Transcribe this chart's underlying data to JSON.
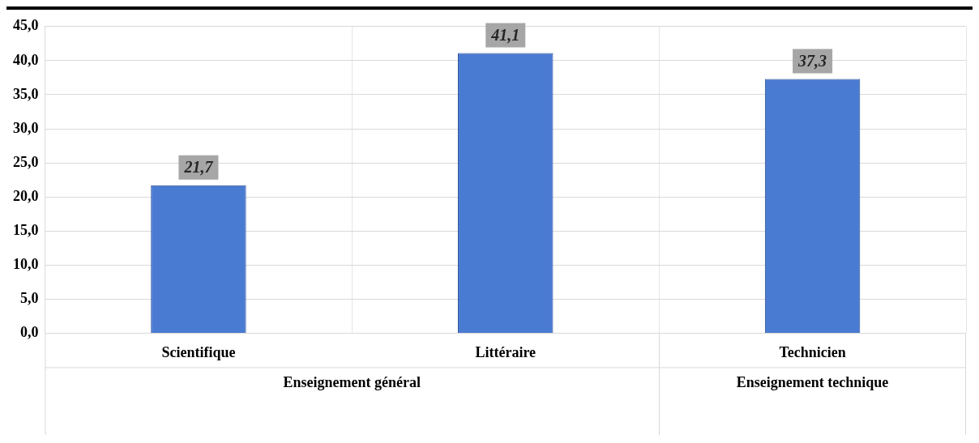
{
  "chart_data": {
    "type": "bar",
    "categories": [
      "Scientifique",
      "Littéraire",
      "Technicien"
    ],
    "values": [
      21.7,
      41.1,
      37.3
    ],
    "color": "#4a7bd2",
    "value_labels": [
      "21,7",
      "41,1",
      "37,3"
    ],
    "ylim": [
      0,
      45
    ],
    "yticks": [
      {
        "value": 0,
        "label": "0,0"
      },
      {
        "value": 5,
        "label": "5,0"
      },
      {
        "value": 10,
        "label": "10,0"
      },
      {
        "value": 15,
        "label": "15,0"
      },
      {
        "value": 20,
        "label": "20,0"
      },
      {
        "value": 25,
        "label": "25,0"
      },
      {
        "value": 30,
        "label": "30,0"
      },
      {
        "value": 35,
        "label": "35,0"
      },
      {
        "value": 40,
        "label": "40,0"
      },
      {
        "value": 45,
        "label": "45,0"
      }
    ],
    "annotations": [
      "Enseignement général",
      "Enseignement technique"
    ],
    "grid": true,
    "legend": false
  }
}
